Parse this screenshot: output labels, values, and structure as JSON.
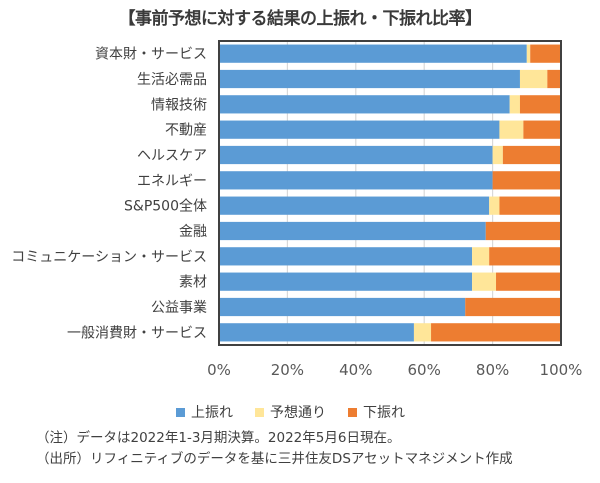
{
  "chart_data": {
    "type": "bar",
    "orientation": "horizontal",
    "stacked": "percent",
    "title": "【事前予想に対する結果の上振れ・下振れ比率】",
    "xlabel": "",
    "ylabel": "",
    "xlim": [
      0,
      100
    ],
    "grid": true,
    "legend_position": "bottom",
    "x_ticks": [
      "0%",
      "20%",
      "40%",
      "60%",
      "80%",
      "100%"
    ],
    "categories": [
      "資本財・サービス",
      "生活必需品",
      "情報技術",
      "不動産",
      "ヘルスケア",
      "エネルギー",
      "S&P500全体",
      "金融",
      "コミュニケーション・サービス",
      "素材",
      "公益事業",
      "一般消費財・サービス"
    ],
    "series": [
      {
        "name": "上振れ",
        "color": "#5B9BD5",
        "values": [
          90,
          88,
          85,
          82,
          80,
          80,
          79,
          78,
          74,
          74,
          72,
          57
        ]
      },
      {
        "name": "予想通り",
        "color": "#FFE699",
        "values": [
          1,
          8,
          3,
          7,
          3,
          0,
          3,
          0,
          5,
          7,
          0,
          5
        ]
      },
      {
        "name": "下振れ",
        "color": "#ED7D31",
        "values": [
          9,
          4,
          12,
          11,
          17,
          20,
          18,
          22,
          21,
          19,
          28,
          38
        ]
      }
    ]
  },
  "notes": [
    "（注）データは2022年1-3月期決算。2022年5月6日現在。",
    "（出所）リフィニティブのデータを基に三井住友DSアセットマネジメント作成"
  ]
}
